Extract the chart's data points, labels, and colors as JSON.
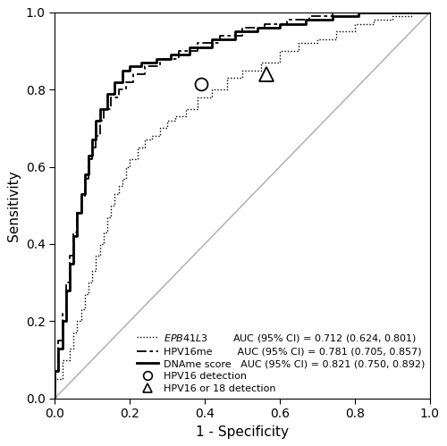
{
  "xlabel": "1 - Specificity",
  "ylabel": "Sensitivity",
  "xlim": [
    0,
    1
  ],
  "ylim": [
    0,
    1
  ],
  "xticks": [
    0.0,
    0.2,
    0.4,
    0.6,
    0.8,
    1.0
  ],
  "yticks": [
    0.0,
    0.2,
    0.4,
    0.6,
    0.8,
    1.0
  ],
  "diagonal_color": "#aaaaaa",
  "line_color": "#000000",
  "epb41l3_auc": "AUC (95% CI) = 0.712 (0.624, 0.801)",
  "hpv16me_auc": "AUC (95% CI) = 0.781 (0.705, 0.857)",
  "dname_auc": "AUC (95% CI) = 0.821 (0.750, 0.892)",
  "circle_point": [
    0.39,
    0.815
  ],
  "triangle_point": [
    0.565,
    0.84
  ],
  "circle_label": "HPV16 detection",
  "triangle_label": "HPV16 or 18 detection",
  "background_color": "#ffffff",
  "fontsize": 11,
  "legend_fontsize": 8.0,
  "epb41l3_fpr": [
    0.0,
    0.0,
    0.02,
    0.02,
    0.04,
    0.04,
    0.05,
    0.05,
    0.06,
    0.06,
    0.07,
    0.07,
    0.08,
    0.08,
    0.09,
    0.09,
    0.1,
    0.1,
    0.11,
    0.11,
    0.12,
    0.12,
    0.13,
    0.13,
    0.14,
    0.14,
    0.15,
    0.15,
    0.16,
    0.16,
    0.17,
    0.17,
    0.18,
    0.18,
    0.19,
    0.19,
    0.2,
    0.2,
    0.22,
    0.22,
    0.24,
    0.24,
    0.26,
    0.26,
    0.28,
    0.28,
    0.3,
    0.3,
    0.32,
    0.32,
    0.35,
    0.35,
    0.38,
    0.38,
    0.42,
    0.42,
    0.46,
    0.46,
    0.5,
    0.5,
    0.55,
    0.55,
    0.6,
    0.6,
    0.65,
    0.65,
    0.7,
    0.7,
    0.75,
    0.75,
    0.8,
    0.8,
    0.85,
    0.85,
    0.9,
    0.9,
    0.95,
    0.95,
    1.0
  ],
  "epb41l3_tpr": [
    0.0,
    0.05,
    0.05,
    0.1,
    0.1,
    0.13,
    0.13,
    0.17,
    0.17,
    0.2,
    0.2,
    0.23,
    0.23,
    0.27,
    0.27,
    0.3,
    0.3,
    0.33,
    0.33,
    0.37,
    0.37,
    0.4,
    0.4,
    0.43,
    0.43,
    0.47,
    0.47,
    0.5,
    0.5,
    0.53,
    0.53,
    0.55,
    0.55,
    0.57,
    0.57,
    0.6,
    0.6,
    0.62,
    0.62,
    0.65,
    0.65,
    0.67,
    0.67,
    0.68,
    0.68,
    0.7,
    0.7,
    0.72,
    0.72,
    0.73,
    0.73,
    0.75,
    0.75,
    0.78,
    0.78,
    0.8,
    0.8,
    0.83,
    0.83,
    0.85,
    0.85,
    0.87,
    0.87,
    0.9,
    0.9,
    0.92,
    0.92,
    0.93,
    0.93,
    0.95,
    0.95,
    0.97,
    0.97,
    0.98,
    0.98,
    0.99,
    0.99,
    1.0,
    1.0
  ],
  "hpv16me_fpr": [
    0.0,
    0.0,
    0.01,
    0.01,
    0.02,
    0.02,
    0.03,
    0.03,
    0.04,
    0.04,
    0.05,
    0.05,
    0.06,
    0.06,
    0.07,
    0.07,
    0.08,
    0.08,
    0.09,
    0.09,
    0.1,
    0.1,
    0.11,
    0.11,
    0.12,
    0.12,
    0.13,
    0.13,
    0.15,
    0.15,
    0.17,
    0.17,
    0.19,
    0.19,
    0.21,
    0.21,
    0.24,
    0.24,
    0.28,
    0.28,
    0.33,
    0.33,
    0.38,
    0.38,
    0.44,
    0.44,
    0.5,
    0.5,
    0.56,
    0.56,
    0.62,
    0.62,
    0.68,
    0.68,
    0.74,
    0.74,
    0.8,
    0.8,
    0.86,
    0.86,
    0.92,
    0.92,
    1.0
  ],
  "hpv16me_tpr": [
    0.0,
    0.07,
    0.07,
    0.15,
    0.15,
    0.22,
    0.22,
    0.3,
    0.3,
    0.37,
    0.37,
    0.43,
    0.43,
    0.48,
    0.48,
    0.52,
    0.52,
    0.57,
    0.57,
    0.62,
    0.62,
    0.65,
    0.65,
    0.68,
    0.68,
    0.72,
    0.72,
    0.75,
    0.75,
    0.78,
    0.78,
    0.8,
    0.8,
    0.82,
    0.82,
    0.84,
    0.84,
    0.86,
    0.86,
    0.88,
    0.88,
    0.9,
    0.9,
    0.92,
    0.92,
    0.94,
    0.94,
    0.96,
    0.96,
    0.97,
    0.97,
    0.98,
    0.98,
    0.99,
    0.99,
    1.0,
    1.0,
    1.0,
    1.0,
    1.0,
    1.0,
    1.0,
    1.0
  ],
  "dname_fpr": [
    0.0,
    0.0,
    0.01,
    0.01,
    0.02,
    0.02,
    0.03,
    0.03,
    0.04,
    0.04,
    0.05,
    0.05,
    0.06,
    0.06,
    0.07,
    0.07,
    0.08,
    0.08,
    0.09,
    0.09,
    0.1,
    0.1,
    0.11,
    0.11,
    0.12,
    0.12,
    0.14,
    0.14,
    0.16,
    0.16,
    0.18,
    0.18,
    0.2,
    0.2,
    0.23,
    0.23,
    0.27,
    0.27,
    0.31,
    0.31,
    0.36,
    0.36,
    0.42,
    0.42,
    0.48,
    0.48,
    0.54,
    0.54,
    0.6,
    0.6,
    0.67,
    0.67,
    0.74,
    0.74,
    0.81,
    0.81,
    0.88,
    0.88,
    0.94,
    0.94,
    1.0
  ],
  "dname_tpr": [
    0.0,
    0.07,
    0.07,
    0.13,
    0.13,
    0.2,
    0.2,
    0.28,
    0.28,
    0.35,
    0.35,
    0.42,
    0.42,
    0.48,
    0.48,
    0.53,
    0.53,
    0.58,
    0.58,
    0.63,
    0.63,
    0.67,
    0.67,
    0.72,
    0.72,
    0.75,
    0.75,
    0.79,
    0.79,
    0.82,
    0.82,
    0.85,
    0.85,
    0.86,
    0.86,
    0.87,
    0.87,
    0.88,
    0.88,
    0.89,
    0.89,
    0.91,
    0.91,
    0.93,
    0.93,
    0.95,
    0.95,
    0.96,
    0.96,
    0.97,
    0.97,
    0.98,
    0.98,
    0.99,
    0.99,
    1.0,
    1.0,
    1.0,
    1.0,
    1.0,
    1.0
  ]
}
